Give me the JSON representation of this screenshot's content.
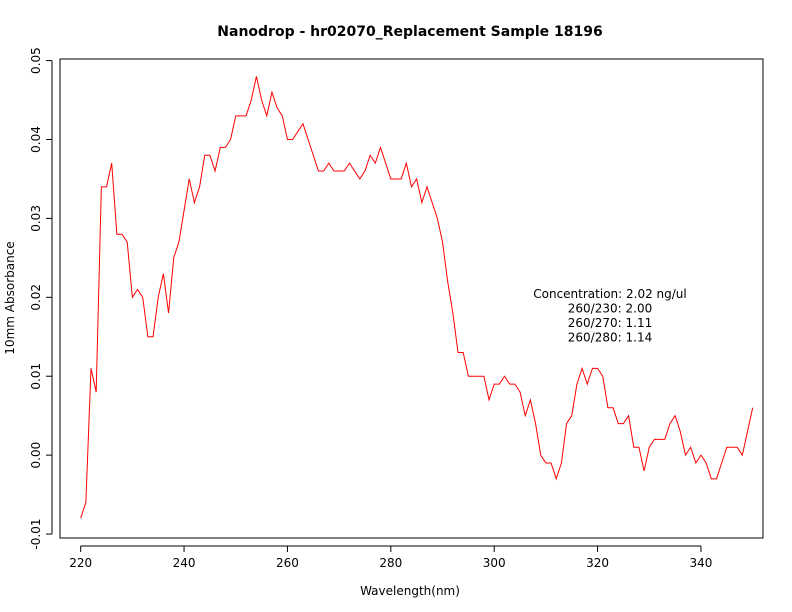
{
  "chart_data": {
    "type": "line",
    "title": "Nanodrop - hr02070_Replacement Sample 18196",
    "xlabel": "Wavelength(nm)",
    "ylabel": "10mm Absorbance",
    "xlim": [
      216,
      352
    ],
    "ylim": [
      -0.0105,
      0.0502
    ],
    "x_ticks": [
      220,
      240,
      260,
      280,
      300,
      320,
      340
    ],
    "y_ticks": [
      -0.01,
      0.0,
      0.01,
      0.02,
      0.03,
      0.04,
      0.05
    ],
    "x_tick_labels": [
      "220",
      "240",
      "260",
      "280",
      "300",
      "320",
      "340"
    ],
    "y_tick_labels": [
      "-0.01",
      "0.00",
      "0.01",
      "0.02",
      "0.03",
      "0.04",
      "0.05"
    ],
    "grid": false,
    "line_color": "#ff0000",
    "annotations": [
      "Concentration: 2.02 ng/ul",
      "260/230: 2.00",
      "260/270: 1.11",
      "260/280: 1.14"
    ],
    "series": [
      {
        "x": [
          220,
          221,
          222,
          223,
          224,
          225,
          226,
          227,
          228,
          229,
          230,
          231,
          232,
          233,
          234,
          235,
          236,
          237,
          238,
          239,
          240,
          241,
          242,
          243,
          244,
          245,
          246,
          247,
          248,
          249,
          250,
          251,
          252,
          253,
          254,
          255,
          256,
          257,
          258,
          259,
          260,
          261,
          262,
          263,
          264,
          265,
          266,
          267,
          268,
          269,
          270,
          271,
          272,
          273,
          274,
          275,
          276,
          277,
          278,
          279,
          280,
          281,
          282,
          283,
          284,
          285,
          286,
          287,
          288,
          289,
          290,
          291,
          292,
          293,
          294,
          295,
          296,
          297,
          298,
          299,
          300,
          301,
          302,
          303,
          304,
          305,
          306,
          307,
          308,
          309,
          310,
          311,
          312,
          313,
          314,
          315,
          316,
          317,
          318,
          319,
          320,
          321,
          322,
          323,
          324,
          325,
          326,
          327,
          328,
          329,
          330,
          331,
          332,
          333,
          334,
          335,
          336,
          337,
          338,
          339,
          340,
          341,
          342,
          343,
          344,
          345,
          346,
          347,
          348,
          349,
          350
        ],
        "y": [
          -0.008,
          -0.006,
          0.011,
          0.008,
          0.034,
          0.034,
          0.037,
          0.028,
          0.028,
          0.027,
          0.02,
          0.021,
          0.02,
          0.015,
          0.015,
          0.02,
          0.023,
          0.018,
          0.025,
          0.027,
          0.031,
          0.035,
          0.032,
          0.034,
          0.038,
          0.038,
          0.036,
          0.039,
          0.039,
          0.04,
          0.043,
          0.043,
          0.043,
          0.045,
          0.048,
          0.045,
          0.043,
          0.046,
          0.044,
          0.043,
          0.04,
          0.04,
          0.041,
          0.042,
          0.04,
          0.038,
          0.036,
          0.036,
          0.037,
          0.036,
          0.036,
          0.036,
          0.037,
          0.036,
          0.035,
          0.036,
          0.038,
          0.037,
          0.039,
          0.037,
          0.035,
          0.035,
          0.035,
          0.037,
          0.034,
          0.035,
          0.032,
          0.034,
          0.032,
          0.03,
          0.027,
          0.022,
          0.018,
          0.013,
          0.013,
          0.01,
          0.01,
          0.01,
          0.01,
          0.007,
          0.009,
          0.009,
          0.01,
          0.009,
          0.009,
          0.008,
          0.005,
          0.007,
          0.004,
          0.0,
          -0.001,
          -0.001,
          -0.003,
          -0.001,
          0.004,
          0.005,
          0.009,
          0.011,
          0.009,
          0.011,
          0.011,
          0.01,
          0.006,
          0.006,
          0.004,
          0.004,
          0.005,
          0.001,
          0.001,
          -0.002,
          0.001,
          0.002,
          0.002,
          0.002,
          0.004,
          0.005,
          0.003,
          0.0,
          0.001,
          -0.001,
          0.0,
          -0.001,
          -0.003,
          -0.003,
          -0.001,
          0.001,
          0.001,
          0.001,
          0.0,
          0.003,
          0.006
        ]
      }
    ]
  }
}
